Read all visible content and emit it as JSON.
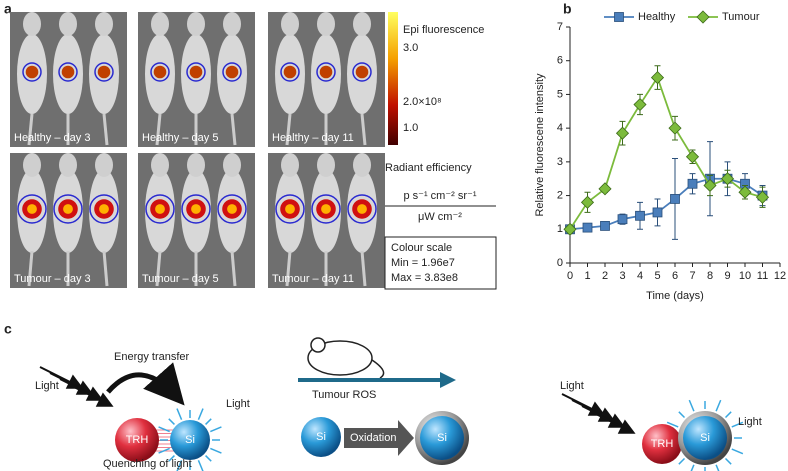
{
  "panel_labels": [
    "a",
    "b",
    "c"
  ],
  "panel_a": {
    "images": [
      "Healthy – day 3",
      "Healthy – day 5",
      "Healthy – day 11",
      "Tumour – day 3",
      "Tumour – day 5",
      "Tumour – day 11"
    ],
    "colorbar": {
      "title": "Epi fluorescence",
      "ticks": [
        "3.0",
        "2.0×10⁸",
        "1.0"
      ]
    },
    "units": {
      "title": "Radiant efficiency",
      "numerator": "p s⁻¹ cm⁻² sr⁻¹",
      "denominator": "μW cm⁻²"
    },
    "colour_scale": [
      "Colour scale",
      "Min = 1.96e7",
      "Max = 3.83e8"
    ]
  },
  "chart_data": {
    "type": "line",
    "x_label": "Time (days)",
    "y_label": "Relative fluorescene intensity",
    "x": [
      0,
      1,
      2,
      3,
      4,
      5,
      6,
      7,
      8,
      9,
      10,
      11
    ],
    "xlim": [
      0,
      12
    ],
    "xticks": [
      0,
      1,
      2,
      3,
      4,
      5,
      6,
      7,
      8,
      9,
      10,
      11,
      12
    ],
    "ylim": [
      0,
      7
    ],
    "yticks": [
      0,
      1,
      2,
      3,
      4,
      5,
      6,
      7
    ],
    "series": [
      {
        "name": "Healthy",
        "color": "#4a7ebb",
        "marker": "square",
        "values": [
          1,
          1.05,
          1.1,
          1.3,
          1.4,
          1.5,
          1.9,
          2.35,
          2.5,
          2.5,
          2.35,
          2.0
        ],
        "errors": [
          0.1,
          0.1,
          0.1,
          0.15,
          0.4,
          0.4,
          1.2,
          0.3,
          1.1,
          0.5,
          0.3,
          0.3
        ]
      },
      {
        "name": "Tumour",
        "color": "#7cbb3c",
        "marker": "diamond",
        "values": [
          1,
          1.8,
          2.2,
          3.85,
          4.7,
          5.5,
          4.0,
          3.15,
          2.3,
          2.5,
          2.1,
          1.95
        ],
        "errors": [
          0.1,
          0.3,
          0.1,
          0.35,
          0.3,
          0.35,
          0.35,
          0.2,
          0.3,
          0.25,
          0.2,
          0.3
        ]
      }
    ]
  },
  "panel_c": {
    "left": {
      "light_in": "Light",
      "transfer": "Energy transfer",
      "donor": "TRH",
      "acceptor": "Si",
      "light_out": "Light",
      "caption": "Quenching of light"
    },
    "middle": {
      "trigger": "Tumour ROS",
      "before": "Si",
      "process": "Oxidation",
      "after": "Si"
    },
    "right": {
      "light_in": "Light",
      "donor": "TRH",
      "acceptor": "Si",
      "light_out": "Light"
    }
  }
}
